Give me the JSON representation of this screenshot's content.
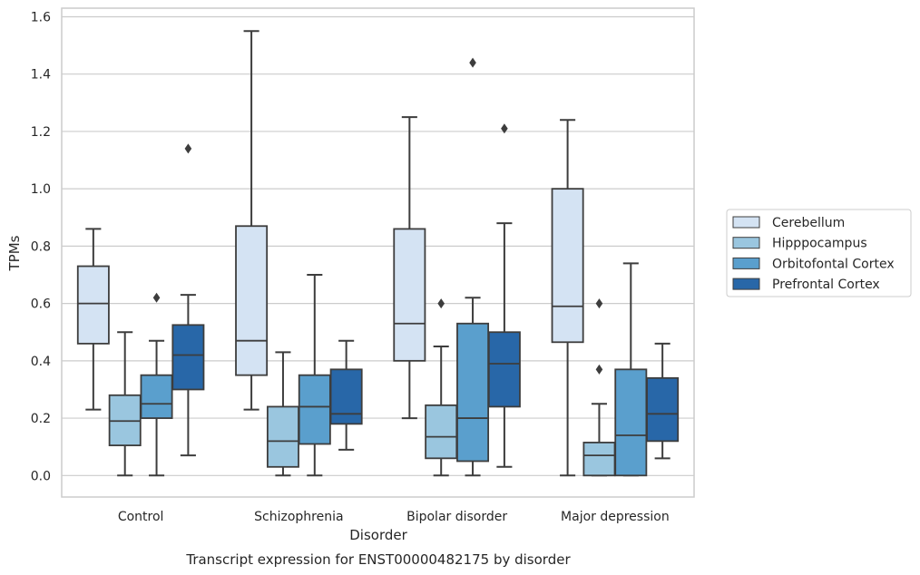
{
  "chart_data": {
    "type": "boxplot",
    "title": "Transcript expression for ENST00000482175 by disorder",
    "xlabel": "Disorder",
    "ylabel": "TPMs",
    "ylim": [
      -0.075,
      1.63
    ],
    "yticks": [
      "0.0",
      "0.2",
      "0.4",
      "0.6",
      "0.8",
      "1.0",
      "1.2",
      "1.4",
      "1.6"
    ],
    "categories": [
      "Control",
      "Schizophrenia",
      "Bipolar disorder",
      "Major depression"
    ],
    "grid": true,
    "legend_position": "right",
    "series": [
      {
        "name": "Cerebellum",
        "color": "#d4e3f3",
        "boxes": [
          {
            "whislo": 0.23,
            "q1": 0.46,
            "med": 0.6,
            "q3": 0.73,
            "whishi": 0.86,
            "fliers": []
          },
          {
            "whislo": 0.23,
            "q1": 0.35,
            "med": 0.47,
            "q3": 0.87,
            "whishi": 1.55,
            "fliers": []
          },
          {
            "whislo": 0.2,
            "q1": 0.4,
            "med": 0.53,
            "q3": 0.86,
            "whishi": 1.25,
            "fliers": []
          },
          {
            "whislo": 0.0,
            "q1": 0.465,
            "med": 0.59,
            "q3": 1.0,
            "whishi": 1.24,
            "fliers": []
          }
        ]
      },
      {
        "name": "Hipppocampus",
        "color": "#9ac6df",
        "boxes": [
          {
            "whislo": 0.0,
            "q1": 0.105,
            "med": 0.19,
            "q3": 0.28,
            "whishi": 0.5,
            "fliers": []
          },
          {
            "whislo": 0.0,
            "q1": 0.03,
            "med": 0.12,
            "q3": 0.24,
            "whishi": 0.43,
            "fliers": []
          },
          {
            "whislo": 0.0,
            "q1": 0.06,
            "med": 0.135,
            "q3": 0.245,
            "whishi": 0.45,
            "fliers": [
              0.6
            ]
          },
          {
            "whislo": 0.0,
            "q1": 0.0,
            "med": 0.07,
            "q3": 0.115,
            "whishi": 0.25,
            "fliers": [
              0.37,
              0.6
            ]
          }
        ]
      },
      {
        "name": "Orbitofontal Cortex",
        "color": "#5a9fcd",
        "boxes": [
          {
            "whislo": 0.0,
            "q1": 0.2,
            "med": 0.25,
            "q3": 0.35,
            "whishi": 0.47,
            "fliers": [
              0.62
            ]
          },
          {
            "whislo": 0.0,
            "q1": 0.11,
            "med": 0.24,
            "q3": 0.35,
            "whishi": 0.7,
            "fliers": []
          },
          {
            "whislo": 0.0,
            "q1": 0.05,
            "med": 0.2,
            "q3": 0.53,
            "whishi": 0.62,
            "fliers": [
              1.44
            ]
          },
          {
            "whislo": 0.0,
            "q1": 0.0,
            "med": 0.14,
            "q3": 0.37,
            "whishi": 0.74,
            "fliers": []
          }
        ]
      },
      {
        "name": "Prefrontal Cortex",
        "color": "#2867a8",
        "boxes": [
          {
            "whislo": 0.07,
            "q1": 0.3,
            "med": 0.42,
            "q3": 0.525,
            "whishi": 0.63,
            "fliers": [
              1.14
            ]
          },
          {
            "whislo": 0.09,
            "q1": 0.18,
            "med": 0.215,
            "q3": 0.37,
            "whishi": 0.47,
            "fliers": []
          },
          {
            "whislo": 0.03,
            "q1": 0.24,
            "med": 0.39,
            "q3": 0.5,
            "whishi": 0.88,
            "fliers": [
              1.21
            ]
          },
          {
            "whislo": 0.06,
            "q1": 0.12,
            "med": 0.215,
            "q3": 0.34,
            "whishi": 0.46,
            "fliers": []
          }
        ]
      }
    ]
  }
}
